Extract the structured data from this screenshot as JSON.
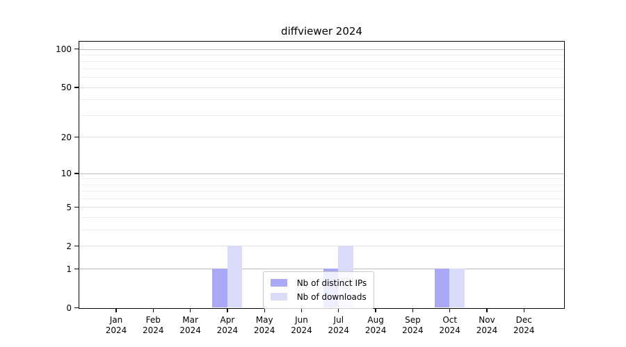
{
  "title": "diffviewer 2024",
  "chart_data": {
    "type": "bar",
    "title": "diffviewer 2024",
    "categories": [
      "Jan 2024",
      "Feb 2024",
      "Mar 2024",
      "Apr 2024",
      "May 2024",
      "Jun 2024",
      "Jul 2024",
      "Aug 2024",
      "Sep 2024",
      "Oct 2024",
      "Nov 2024",
      "Dec 2024"
    ],
    "series": [
      {
        "name": "Nb of distinct IPs",
        "color": "#a9a9f8",
        "values": [
          0,
          0,
          0,
          1,
          0,
          0,
          1,
          0,
          0,
          1,
          0,
          0
        ]
      },
      {
        "name": "Nb of downloads",
        "color": "#dadaf9",
        "values": [
          0,
          0,
          0,
          2,
          0,
          0,
          2,
          0,
          0,
          1,
          0,
          0
        ]
      }
    ],
    "xlabel": "",
    "ylabel": "",
    "yscale": "log10(1+value)",
    "ylim": [
      0,
      115
    ],
    "yaxis": {
      "tick_values": [
        0,
        1,
        2,
        5,
        10,
        20,
        50,
        100
      ],
      "tick_labels": [
        "0",
        "1",
        "2",
        "5",
        "10",
        "20",
        "50",
        "100"
      ],
      "grid_decades": [
        1,
        10,
        100
      ],
      "grid_mids": [
        2,
        5,
        20,
        50
      ],
      "grid_minors": [
        3,
        4,
        6,
        7,
        8,
        9,
        30,
        40,
        60,
        70,
        80,
        90
      ]
    },
    "grid": "horizontal",
    "legend_position": "lower-center-inside"
  },
  "colors": {
    "background": "#ffffff",
    "bar_distinct_ips": "#a9a9f8",
    "bar_downloads": "#dadaf9",
    "grid_decade": "#bdbdbd",
    "grid_mid": "#e2e2e2",
    "grid_minor": "#f0f0f0",
    "axis": "#000000",
    "legend_border": "#c9c9c9",
    "text": "#000000"
  }
}
